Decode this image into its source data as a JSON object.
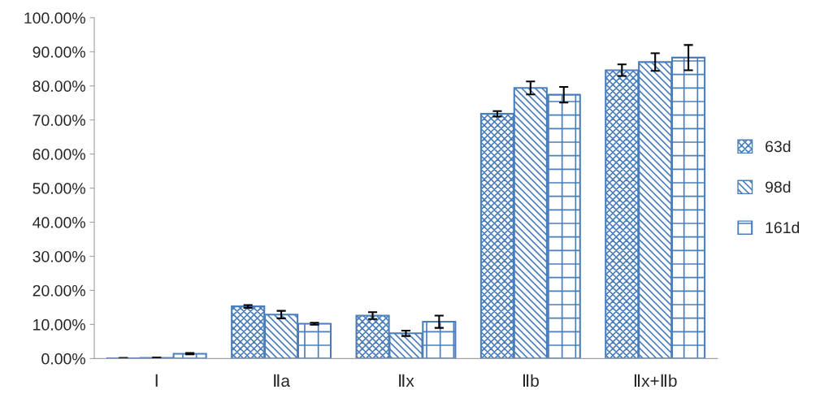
{
  "chart_data": {
    "type": "bar",
    "categories": [
      "Ⅰ",
      "Ⅱa",
      "Ⅱx",
      "Ⅱb",
      "Ⅱx+Ⅱb"
    ],
    "series": [
      {
        "name": "63d",
        "color": "#4a7ebb",
        "values": [
          0.1,
          15.3,
          12.6,
          71.8,
          84.6
        ],
        "errors": [
          0.1,
          0.4,
          1.0,
          0.8,
          1.7
        ]
      },
      {
        "name": "98d",
        "color": "#4a7ebb",
        "values": [
          0.2,
          12.9,
          7.4,
          79.4,
          87.0
        ],
        "errors": [
          0.1,
          1.1,
          0.8,
          1.9,
          2.6
        ]
      },
      {
        "name": "161d",
        "color": "#4a7ebb",
        "values": [
          1.4,
          10.2,
          10.8,
          77.4,
          88.3
        ],
        "errors": [
          0.2,
          0.3,
          1.8,
          2.3,
          3.7
        ]
      }
    ],
    "ylim": [
      0,
      100
    ],
    "yticks": [
      {
        "value": 0,
        "label": "0.00%"
      },
      {
        "value": 10,
        "label": "10.00%"
      },
      {
        "value": 20,
        "label": "20.00%"
      },
      {
        "value": 30,
        "label": "30.00%"
      },
      {
        "value": 40,
        "label": "40.00%"
      },
      {
        "value": 50,
        "label": "50.00%"
      },
      {
        "value": 60,
        "label": "60.00%"
      },
      {
        "value": 70,
        "label": "70.00%"
      },
      {
        "value": 80,
        "label": "80.00%"
      },
      {
        "value": 90,
        "label": "90.00%"
      },
      {
        "value": 100,
        "label": "100.00%"
      }
    ],
    "grid": false,
    "legend": "right"
  }
}
